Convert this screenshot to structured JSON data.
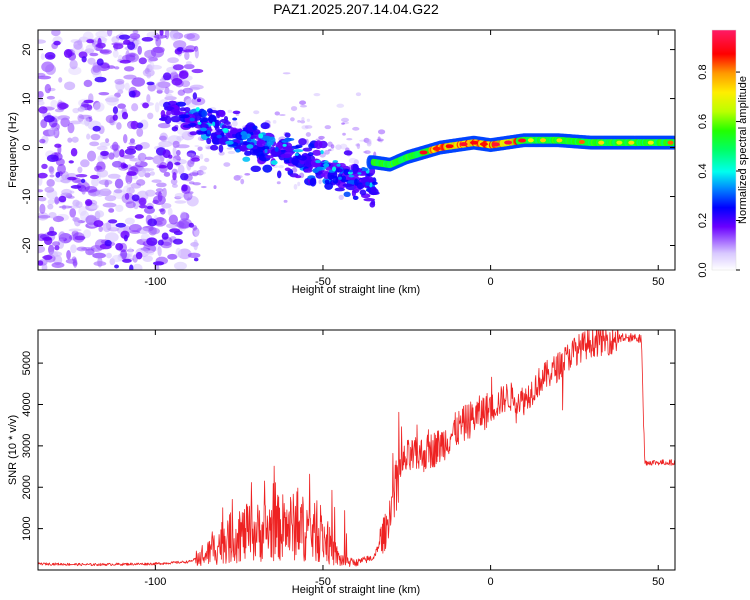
{
  "title": "PAZ1.2025.207.14.04.G22",
  "colorbar": {
    "label": "Normalized spectral amplitude",
    "ticks": [
      0.0,
      0.2,
      0.4,
      0.6,
      0.8
    ],
    "tick_labels": [
      "0.0",
      "0.2",
      "0.4",
      "0.6",
      "0.8"
    ],
    "range": [
      0,
      0.97
    ]
  },
  "chart_data": [
    {
      "type": "heatmap",
      "title": "",
      "xlabel": "Height of straight line (km)",
      "ylabel": "Frequency (Hz)",
      "xlim": [
        -135,
        55
      ],
      "ylim": [
        -25,
        24
      ],
      "xticks": [
        -100,
        -50,
        0,
        50
      ],
      "xtick_labels": [
        "-100",
        "-50",
        "0",
        "50"
      ],
      "yticks": [
        20,
        10,
        0,
        -10,
        -20
      ],
      "ytick_labels": [
        "20",
        "10",
        "0",
        "-10",
        "-20"
      ],
      "colormap": "rainbow",
      "dominant_ridge": {
        "x": [
          -35,
          -30,
          -25,
          -20,
          -15,
          -10,
          -5,
          0,
          5,
          10,
          20,
          30,
          40,
          50,
          55
        ],
        "y": [
          -3,
          -3.5,
          -2,
          -1,
          0,
          0.5,
          1,
          0.5,
          1,
          1.5,
          1.5,
          1,
          1,
          1,
          1
        ]
      }
    },
    {
      "type": "line",
      "title": "",
      "xlabel": "Height of straight line (km)",
      "ylabel": "SNR (10 * v/v)",
      "xlim": [
        -135,
        55
      ],
      "ylim": [
        0,
        5800
      ],
      "xticks": [
        -100,
        -50,
        0,
        50
      ],
      "xtick_labels": [
        "-100",
        "-50",
        "0",
        "50"
      ],
      "yticks": [
        1000,
        2000,
        3000,
        4000,
        5000
      ],
      "ytick_labels": [
        "1000",
        "2000",
        "3000",
        "4000",
        "5000"
      ],
      "color": "#ee2222",
      "series": [
        {
          "x": [
            -135,
            -120,
            -100,
            -90,
            -85,
            -80,
            -75,
            -70,
            -65,
            -60,
            -55,
            -50,
            -45,
            -40,
            -35,
            -31,
            -28,
            -25,
            -20,
            -15,
            -10,
            -5,
            0,
            5,
            10,
            15,
            20,
            25,
            30,
            35,
            40,
            45,
            46,
            50,
            55
          ],
          "y": [
            150,
            130,
            150,
            200,
            350,
            700,
            850,
            900,
            1000,
            1050,
            1000,
            800,
            250,
            180,
            300,
            1000,
            2300,
            2700,
            2800,
            3000,
            3400,
            3700,
            3900,
            4200,
            4100,
            4600,
            4900,
            5300,
            5500,
            5550,
            5600,
            5600,
            2600,
            2600,
            2600
          ]
        }
      ]
    }
  ]
}
